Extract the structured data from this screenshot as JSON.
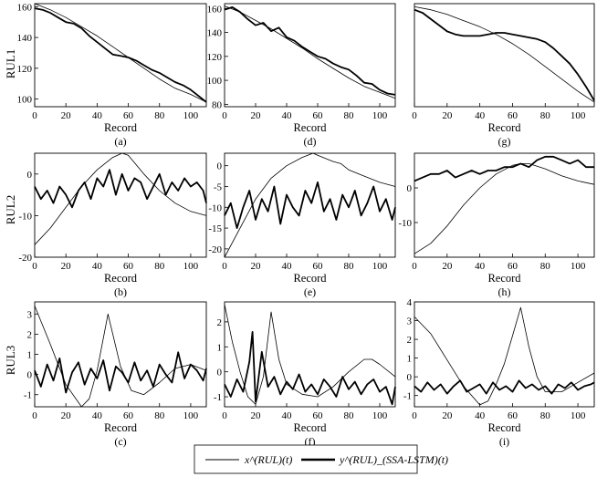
{
  "row_labels": [
    "RUL1",
    "RUL2",
    "RUL3"
  ],
  "legend": {
    "truth": "x^(RUL)(t)",
    "pred": "y^(RUL)_(SSA-LSTM)(t)"
  },
  "chart_data": [
    {
      "type": "line",
      "caption": "(a)",
      "xlabel": "Record",
      "ylabel": "RUL1",
      "xlim": [
        0,
        110
      ],
      "ylim": [
        95,
        162
      ],
      "xticks": [
        0,
        20,
        40,
        60,
        80,
        100
      ],
      "yticks": [
        100,
        120,
        140,
        160
      ],
      "series": [
        {
          "role": "truth",
          "x": [
            0,
            10,
            20,
            30,
            40,
            50,
            60,
            70,
            80,
            90,
            100,
            110
          ],
          "y": [
            162,
            158,
            153,
            147,
            141,
            134,
            127,
            120,
            113,
            107,
            103,
            98
          ]
        },
        {
          "role": "pred",
          "x": [
            0,
            5,
            10,
            15,
            20,
            25,
            30,
            35,
            40,
            45,
            50,
            55,
            60,
            65,
            70,
            75,
            80,
            85,
            90,
            95,
            100,
            105,
            110
          ],
          "y": [
            159,
            158,
            156,
            153,
            150,
            149,
            146,
            141,
            137,
            133,
            129,
            128,
            127,
            125,
            122,
            119,
            117,
            114,
            111,
            109,
            106,
            102,
            98
          ]
        }
      ]
    },
    {
      "type": "line",
      "caption": "(b)",
      "xlabel": "Record",
      "ylabel": "RUL2",
      "xlim": [
        0,
        110
      ],
      "ylim": [
        -20,
        5
      ],
      "xticks": [
        0,
        20,
        40,
        60,
        80,
        100
      ],
      "yticks": [
        -20,
        -10,
        0
      ],
      "series": [
        {
          "role": "truth",
          "x": [
            0,
            10,
            20,
            30,
            40,
            50,
            56,
            60,
            70,
            80,
            90,
            100,
            110
          ],
          "y": [
            -17,
            -13,
            -8,
            -3,
            1,
            4,
            5,
            4.5,
            0,
            -4,
            -7,
            -9,
            -10
          ]
        },
        {
          "role": "pred",
          "x": [
            0,
            4,
            8,
            12,
            16,
            20,
            24,
            28,
            32,
            36,
            40,
            44,
            48,
            52,
            56,
            60,
            64,
            68,
            72,
            76,
            80,
            84,
            88,
            92,
            96,
            100,
            104,
            108,
            110
          ],
          "y": [
            -3,
            -6,
            -4,
            -7,
            -3,
            -5,
            -8,
            -4,
            -2,
            -6,
            -1,
            -3,
            1,
            -5,
            0,
            -4,
            -1,
            -2,
            -6,
            -3,
            0,
            -5,
            -2,
            -4,
            -1,
            -3,
            -2,
            -4,
            -7
          ]
        }
      ]
    },
    {
      "type": "line",
      "caption": "(c)",
      "xlabel": "Record",
      "ylabel": "RUL3",
      "xlim": [
        0,
        110
      ],
      "ylim": [
        -1.6,
        3.6
      ],
      "xticks": [
        0,
        20,
        40,
        60,
        80,
        100
      ],
      "yticks": [
        -1,
        0,
        1,
        2,
        3
      ],
      "series": [
        {
          "role": "truth",
          "x": [
            0,
            10,
            20,
            30,
            35,
            40,
            47,
            55,
            62,
            70,
            80,
            90,
            100,
            110
          ],
          "y": [
            3.4,
            1.5,
            -0.5,
            -1.6,
            -1.2,
            0.2,
            3.0,
            0.4,
            -0.8,
            -1.0,
            -0.4,
            0.3,
            0.5,
            0.2
          ]
        },
        {
          "role": "pred",
          "x": [
            0,
            4,
            8,
            12,
            16,
            20,
            24,
            28,
            32,
            36,
            40,
            44,
            48,
            52,
            56,
            60,
            64,
            68,
            72,
            76,
            80,
            84,
            88,
            92,
            96,
            100,
            104,
            108,
            110
          ],
          "y": [
            0.2,
            -0.6,
            0.5,
            -0.3,
            0.8,
            -0.9,
            0.1,
            0.6,
            -0.5,
            0.3,
            -0.2,
            0.7,
            -0.8,
            0.4,
            0.1,
            -0.4,
            0.6,
            -0.3,
            0.2,
            -0.6,
            0.5,
            0,
            -0.4,
            1.1,
            -0.2,
            0.5,
            0.2,
            -0.3,
            0.3
          ]
        }
      ]
    },
    {
      "type": "line",
      "caption": "(d)",
      "xlabel": "Record",
      "ylabel": "",
      "xlim": [
        0,
        110
      ],
      "ylim": [
        78,
        164
      ],
      "xticks": [
        0,
        20,
        40,
        60,
        80,
        100
      ],
      "yticks": [
        80,
        100,
        120,
        140,
        160
      ],
      "series": [
        {
          "role": "truth",
          "x": [
            0,
            10,
            20,
            30,
            40,
            50,
            60,
            70,
            80,
            90,
            100,
            110
          ],
          "y": [
            162,
            157,
            150,
            143,
            135,
            127,
            118,
            110,
            102,
            95,
            90,
            85
          ]
        },
        {
          "role": "pred",
          "x": [
            0,
            5,
            10,
            15,
            20,
            25,
            30,
            35,
            40,
            45,
            50,
            55,
            60,
            65,
            70,
            75,
            80,
            85,
            90,
            95,
            100,
            105,
            110
          ],
          "y": [
            159,
            161,
            157,
            151,
            146,
            148,
            141,
            144,
            136,
            133,
            128,
            124,
            120,
            118,
            114,
            111,
            109,
            104,
            98,
            97,
            92,
            89,
            88
          ]
        }
      ]
    },
    {
      "type": "line",
      "caption": "(e)",
      "xlabel": "Record",
      "ylabel": "",
      "xlim": [
        0,
        110
      ],
      "ylim": [
        -22,
        3
      ],
      "xticks": [
        0,
        20,
        40,
        60,
        80,
        100
      ],
      "yticks": [
        -20,
        -15,
        -10,
        -5,
        0
      ],
      "series": [
        {
          "role": "truth",
          "x": [
            0,
            10,
            20,
            30,
            40,
            50,
            57,
            60,
            70,
            75,
            80,
            90,
            100,
            110
          ],
          "y": [
            -22,
            -15,
            -8,
            -3,
            0,
            2,
            3,
            2.5,
            1,
            0.5,
            -1,
            -2.5,
            -4,
            -5
          ]
        },
        {
          "role": "pred",
          "x": [
            0,
            4,
            8,
            12,
            16,
            20,
            24,
            28,
            32,
            36,
            40,
            44,
            48,
            52,
            56,
            60,
            64,
            68,
            72,
            76,
            80,
            84,
            88,
            92,
            96,
            100,
            104,
            108,
            110
          ],
          "y": [
            -12,
            -9,
            -15,
            -10,
            -6,
            -13,
            -8,
            -11,
            -5,
            -14,
            -7,
            -10,
            -12,
            -6,
            -9,
            -4,
            -11,
            -8,
            -13,
            -7,
            -10,
            -6,
            -12,
            -9,
            -5,
            -11,
            -8,
            -13,
            -10
          ]
        }
      ]
    },
    {
      "type": "line",
      "caption": "(f)",
      "xlabel": "Record",
      "ylabel": "",
      "xlim": [
        0,
        110
      ],
      "ylim": [
        -1.4,
        2.8
      ],
      "xticks": [
        0,
        20,
        40,
        60,
        80,
        100
      ],
      "yticks": [
        -1,
        0,
        1,
        2
      ],
      "series": [
        {
          "role": "truth",
          "x": [
            0,
            5,
            10,
            15,
            20,
            25,
            30,
            35,
            40,
            50,
            60,
            70,
            80,
            90,
            95,
            100,
            110
          ],
          "y": [
            2.7,
            1.2,
            0,
            -1.0,
            -1.3,
            -0.2,
            2.4,
            0.5,
            -0.5,
            -0.9,
            -1.0,
            -0.6,
            0,
            0.5,
            0.5,
            0.3,
            -0.2
          ]
        },
        {
          "role": "pred",
          "x": [
            0,
            4,
            8,
            12,
            16,
            18,
            20,
            24,
            28,
            32,
            36,
            40,
            44,
            48,
            52,
            56,
            60,
            64,
            68,
            72,
            76,
            80,
            84,
            88,
            92,
            96,
            100,
            104,
            108,
            110
          ],
          "y": [
            -0.5,
            -1.0,
            -0.3,
            -0.8,
            0.4,
            1.6,
            -1.2,
            0.8,
            -0.6,
            -0.2,
            -0.9,
            -0.4,
            -0.7,
            -0.1,
            -0.8,
            -0.5,
            -0.9,
            -0.3,
            -0.6,
            -1.0,
            -0.2,
            -0.7,
            -0.4,
            -0.9,
            -0.5,
            -0.3,
            -0.8,
            -0.6,
            -1.3,
            -0.6
          ]
        }
      ]
    },
    {
      "type": "line",
      "caption": "(g)",
      "xlabel": "Record",
      "ylabel": "",
      "xlim": [
        0,
        110
      ],
      "ylim": [
        100,
        167
      ],
      "xticks": [
        0,
        20,
        40,
        60,
        80,
        100
      ],
      "yticks": [],
      "series": [
        {
          "role": "truth",
          "x": [
            0,
            10,
            20,
            30,
            40,
            50,
            60,
            70,
            80,
            90,
            100,
            110
          ],
          "y": [
            165,
            163,
            160,
            156,
            152,
            147,
            141,
            134,
            126,
            118,
            110,
            103
          ]
        },
        {
          "role": "pred",
          "x": [
            0,
            5,
            10,
            15,
            20,
            25,
            30,
            35,
            40,
            45,
            50,
            55,
            60,
            65,
            70,
            75,
            80,
            85,
            90,
            95,
            100,
            105,
            110
          ],
          "y": [
            163,
            161,
            157,
            153,
            149,
            147,
            146,
            146,
            146,
            147,
            148,
            148,
            147,
            146,
            145,
            144,
            142,
            138,
            133,
            128,
            121,
            113,
            104
          ]
        }
      ]
    },
    {
      "type": "line",
      "caption": "(h)",
      "xlabel": "Record",
      "ylabel": "",
      "xlim": [
        0,
        110
      ],
      "ylim": [
        -20,
        10
      ],
      "xticks": [
        0,
        20,
        40,
        60,
        80,
        100
      ],
      "yticks": [
        -10,
        0
      ],
      "series": [
        {
          "role": "truth",
          "x": [
            0,
            10,
            20,
            30,
            40,
            50,
            60,
            65,
            70,
            80,
            90,
            100,
            110
          ],
          "y": [
            -19,
            -16,
            -11,
            -5,
            0,
            4,
            6.5,
            7,
            7,
            5.5,
            3.5,
            2,
            1
          ]
        },
        {
          "role": "pred",
          "x": [
            0,
            5,
            10,
            15,
            20,
            25,
            30,
            35,
            40,
            45,
            50,
            55,
            60,
            65,
            70,
            75,
            80,
            85,
            90,
            95,
            100,
            105,
            110
          ],
          "y": [
            2,
            3,
            4,
            4,
            5,
            3,
            4,
            5,
            4,
            5,
            5,
            6,
            6,
            7,
            6,
            8,
            9,
            9,
            8,
            7,
            8,
            6,
            6
          ]
        }
      ]
    },
    {
      "type": "line",
      "caption": "(i)",
      "xlabel": "Record",
      "ylabel": "",
      "xlim": [
        0,
        110
      ],
      "ylim": [
        -1.6,
        4
      ],
      "xticks": [
        0,
        20,
        40,
        60,
        80,
        100
      ],
      "yticks": [
        -1,
        0,
        1,
        2,
        3,
        4
      ],
      "series": [
        {
          "role": "truth",
          "x": [
            0,
            10,
            20,
            30,
            40,
            45,
            50,
            55,
            60,
            65,
            70,
            75,
            80,
            90,
            100,
            110
          ],
          "y": [
            3.2,
            2.3,
            0.9,
            -0.5,
            -1.5,
            -1.3,
            -0.4,
            0.7,
            2.2,
            3.7,
            1.6,
            0,
            -0.8,
            -0.8,
            -0.3,
            0.2
          ]
        },
        {
          "role": "pred",
          "x": [
            0,
            4,
            8,
            12,
            16,
            20,
            24,
            28,
            32,
            36,
            40,
            44,
            48,
            52,
            56,
            60,
            64,
            68,
            72,
            76,
            80,
            84,
            88,
            92,
            96,
            100,
            104,
            108,
            110
          ],
          "y": [
            -0.5,
            -0.8,
            -0.3,
            -0.7,
            -0.4,
            -0.9,
            -0.5,
            -0.2,
            -0.8,
            -0.6,
            -0.4,
            -0.9,
            -0.3,
            -0.7,
            -0.5,
            -0.8,
            -0.2,
            -0.6,
            -0.4,
            -0.7,
            -0.5,
            -0.9,
            -0.4,
            -0.6,
            -0.3,
            -0.7,
            -0.5,
            -0.4,
            -0.3
          ]
        }
      ]
    }
  ]
}
